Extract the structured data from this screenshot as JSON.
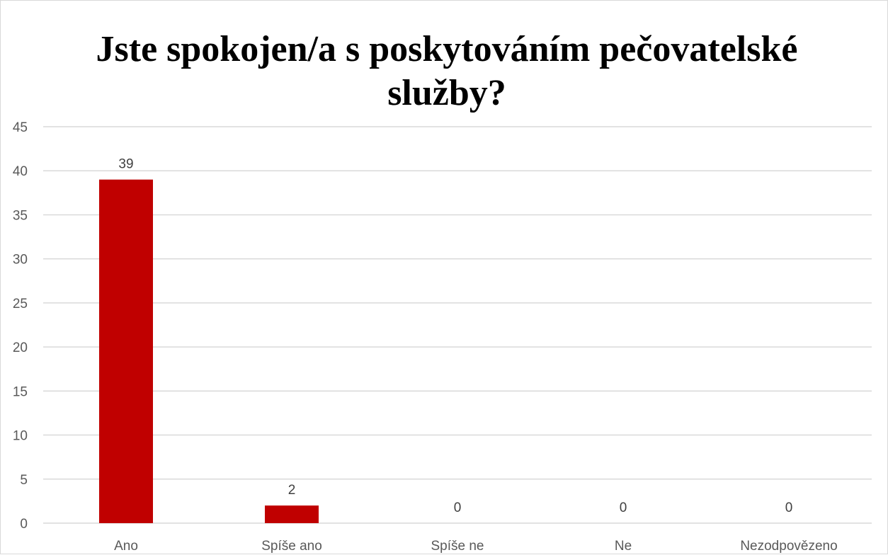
{
  "chart_data": {
    "type": "bar",
    "title": "Jste spokojen/a s poskytováním pečovatelské služby?",
    "categories": [
      "Ano",
      "Spíše ano",
      "Spíše ne",
      "Ne",
      "Nezodpovězeno"
    ],
    "values": [
      39,
      2,
      0,
      0,
      0
    ],
    "data_labels": [
      "39",
      "2",
      "0",
      "0",
      "0"
    ],
    "ylim": [
      0,
      45
    ],
    "y_ticks": [
      0,
      5,
      10,
      15,
      20,
      25,
      30,
      35,
      40,
      45
    ],
    "xlabel": "",
    "ylabel": "",
    "grid": true,
    "legend": "none",
    "bar_color": "#c00000",
    "gridline_color": "#d9d9d9"
  }
}
